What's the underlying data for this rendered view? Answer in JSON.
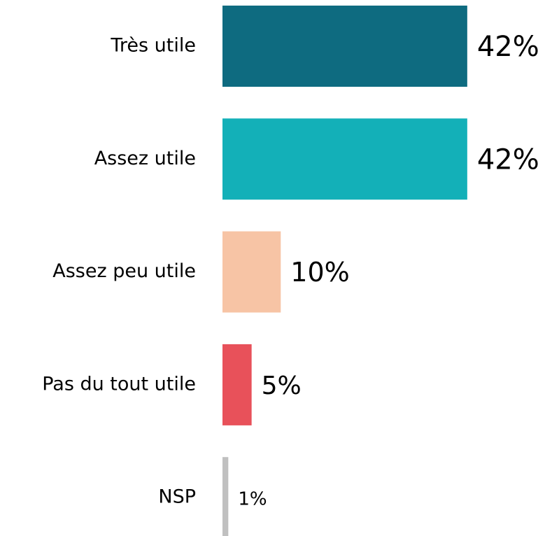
{
  "chart_data": {
    "type": "bar",
    "orientation": "horizontal",
    "categories": [
      "Très utile",
      "Assez utile",
      "Assez peu utile",
      "Pas du tout utile",
      "NSP"
    ],
    "values": [
      42,
      42,
      10,
      5,
      1
    ],
    "value_labels": [
      "42%",
      "42%",
      "10%",
      "5%",
      "1%"
    ],
    "colors": [
      "#0e6b80",
      "#13b0b8",
      "#f7c4a5",
      "#e8515a",
      "#c0c0c0"
    ]
  }
}
